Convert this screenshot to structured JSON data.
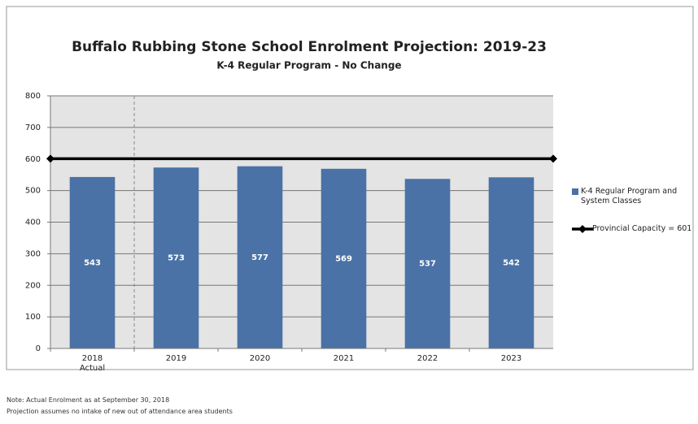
{
  "chart_data": {
    "type": "bar",
    "title": "Buffalo Rubbing Stone School Enrolment Projection: 2019-23",
    "subtitle": "K-4 Regular Program - No Change",
    "categories": [
      "2018 Actual",
      "2019",
      "2020",
      "2021",
      "2022",
      "2023"
    ],
    "series": [
      {
        "name": "K-4 Regular Program and System Classes",
        "color": "#4a72a6",
        "values": [
          543,
          573,
          577,
          569,
          537,
          542
        ]
      }
    ],
    "reference_line": {
      "name": "Provincial Capacity = 601",
      "value": 601,
      "color": "#000000"
    },
    "ylim": [
      0,
      800
    ],
    "yticks": [
      0,
      100,
      200,
      300,
      400,
      500,
      600,
      700,
      800
    ],
    "grid": true,
    "legend": "right",
    "notes": [
      "Note: Actual Enrolment as at September 30, 2018",
      "Projection assumes no intake of new out of attendance area students"
    ]
  }
}
